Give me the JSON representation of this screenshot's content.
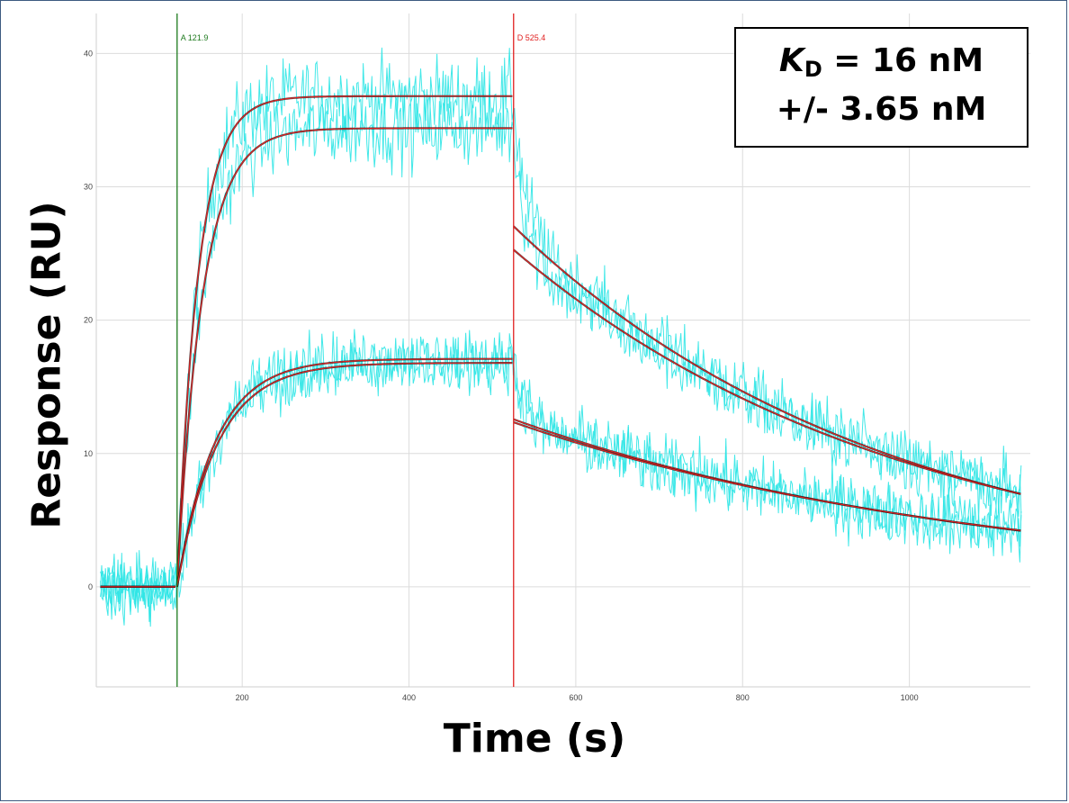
{
  "chart_data": {
    "type": "line",
    "title": "",
    "xlabel": "Time (s)",
    "ylabel": "Response (RU)",
    "xlim": [
      25,
      1145
    ],
    "ylim": [
      -7.5,
      43
    ],
    "x_ticks": [
      200,
      400,
      600,
      800,
      1000
    ],
    "y_ticks": [
      0,
      10,
      20,
      30,
      40
    ],
    "grid": true,
    "markers": [
      {
        "label": "A 121.9",
        "x": 121.9,
        "color": "#1e7a1e"
      },
      {
        "label": "D 525.4",
        "x": 525.4,
        "color": "#e02020"
      }
    ],
    "fit_series": [
      {
        "plateau": 36.8,
        "kon_rate": 0.04,
        "koff_rate": 0.00223
      },
      {
        "plateau": 34.4,
        "kon_rate": 0.033,
        "koff_rate": 0.00212
      },
      {
        "plateau": 17.1,
        "kon_rate": 0.022,
        "koff_rate": 0.0018
      },
      {
        "plateau": 16.8,
        "kon_rate": 0.021,
        "koff_rate": 0.00176
      }
    ],
    "series_start_x": 30,
    "series_end_x": 1135,
    "colors": {
      "raw_data": "#2ee6e6",
      "fit": "#e02020",
      "fit_shadow": "#111111"
    }
  },
  "annotation": {
    "kd_symbol": "K",
    "kd_subscript": "D",
    "kd_value": " = 16 nM",
    "kd_error": "+/- 3.65 nM"
  }
}
